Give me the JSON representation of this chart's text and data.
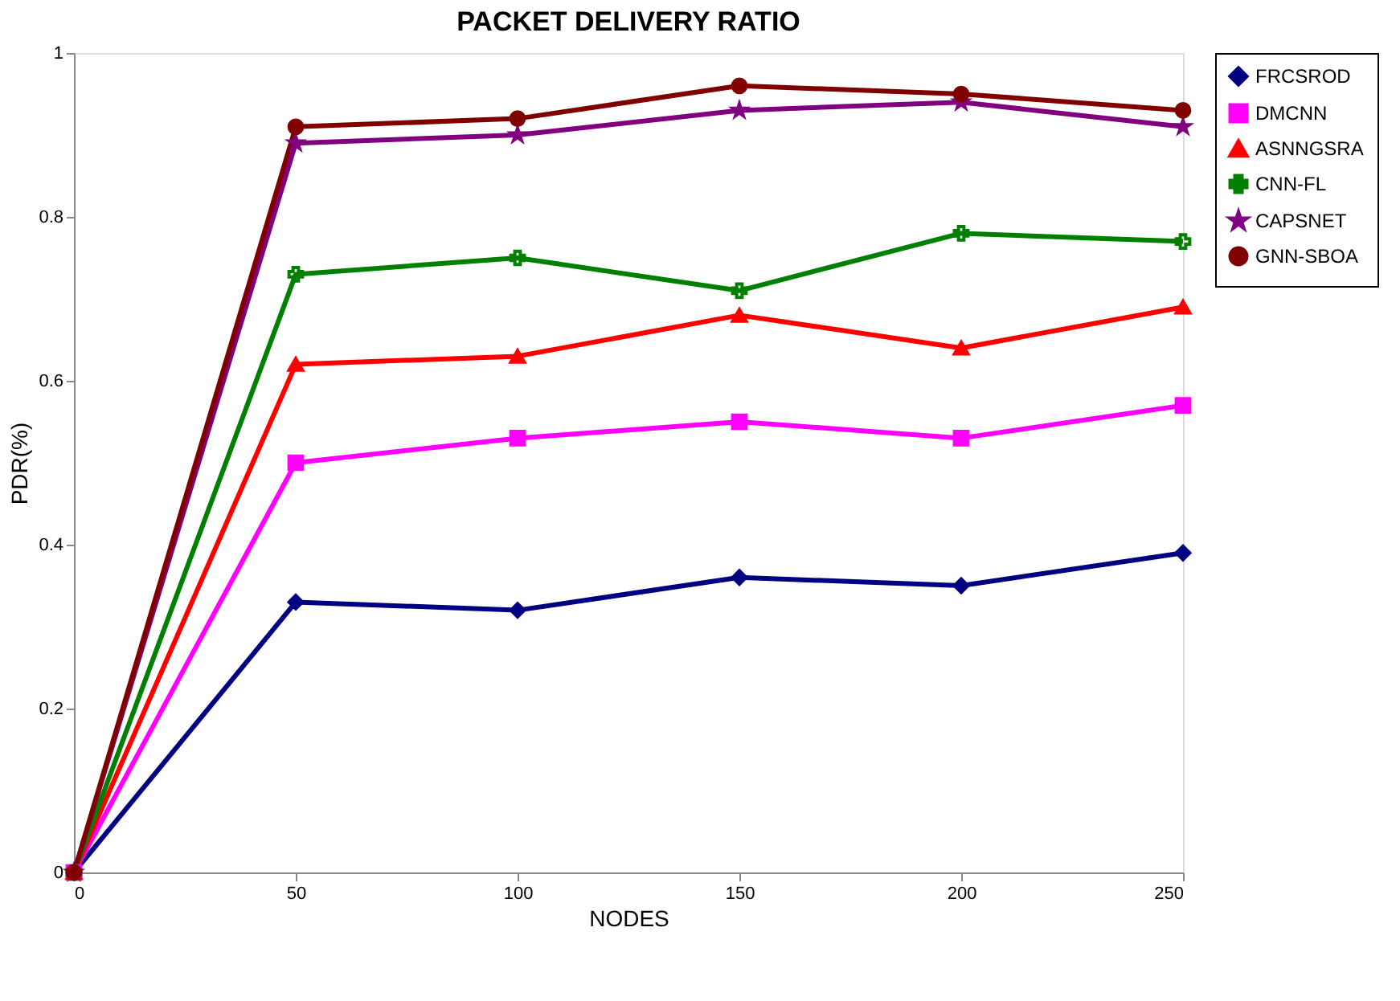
{
  "chart_data": {
    "type": "line",
    "title": "PACKET DELIVERY RATIO",
    "xlabel": "NODES",
    "ylabel": "PDR(%)",
    "x": [
      0,
      50,
      100,
      150,
      200,
      250
    ],
    "series": [
      {
        "name": "FRCSROD",
        "color": "#000080",
        "marker": "diamond",
        "values": [
          0,
          0.33,
          0.32,
          0.36,
          0.35,
          0.39
        ]
      },
      {
        "name": "DMCNN",
        "color": "#ff00ff",
        "marker": "square",
        "values": [
          0,
          0.5,
          0.53,
          0.55,
          0.53,
          0.57
        ]
      },
      {
        "name": "ASNNGSRA",
        "color": "#ff0000",
        "marker": "triangle",
        "values": [
          0,
          0.62,
          0.63,
          0.68,
          0.64,
          0.69
        ]
      },
      {
        "name": "CNN-FL",
        "color": "#008000",
        "marker": "cross",
        "values": [
          0,
          0.73,
          0.75,
          0.71,
          0.78,
          0.77
        ]
      },
      {
        "name": "CAPSNET",
        "color": "#800080",
        "marker": "star",
        "values": [
          0,
          0.89,
          0.9,
          0.93,
          0.94,
          0.91
        ]
      },
      {
        "name": "GNN-SBOA",
        "color": "#800000",
        "marker": "circle",
        "values": [
          0,
          0.91,
          0.92,
          0.96,
          0.95,
          0.93
        ]
      }
    ],
    "xlim": [
      0,
      250
    ],
    "xticks": [
      0,
      50,
      100,
      150,
      200,
      250
    ],
    "ylim": [
      0,
      1
    ],
    "yticks": [
      0,
      0.2,
      0.4,
      0.6,
      0.8,
      1
    ],
    "grid": false,
    "legend": "right",
    "line_style": "solid"
  }
}
